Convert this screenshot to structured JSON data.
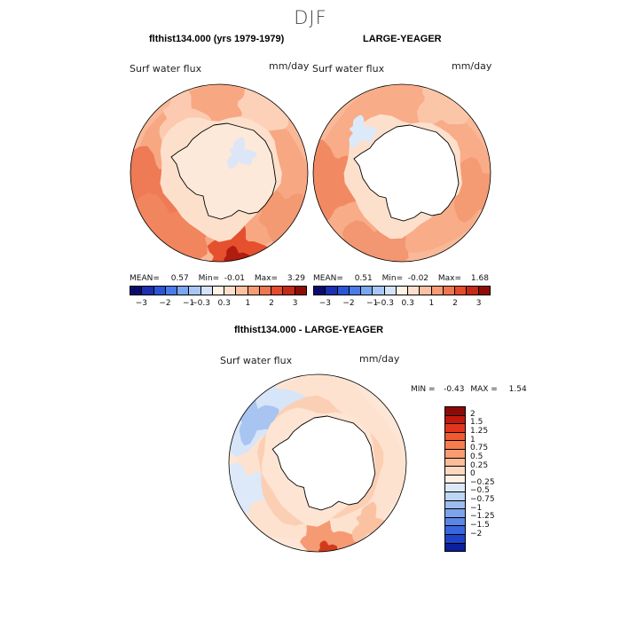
{
  "figure": {
    "season": "DJF"
  },
  "panels": [
    {
      "title": "flthist134.000 (yrs 1979-1979)",
      "variable": "Surf water flux",
      "units": "mm/day",
      "stats": {
        "mean_label": "MEAN=",
        "mean": "0.57",
        "min_label": "Min=",
        "min": "-0.01",
        "max_label": "Max=",
        "max": "3.29"
      }
    },
    {
      "title": "LARGE-YEAGER",
      "variable": "Surf water flux",
      "units": "mm/day",
      "stats": {
        "mean_label": "MEAN=",
        "mean": "0.51",
        "min_label": "Min=",
        "min": "-0.02",
        "max_label": "Max=",
        "max": "1.68"
      }
    },
    {
      "title": "flthist134.000 - LARGE-YEAGER",
      "variable": "Surf water flux",
      "units": "mm/day",
      "stats": {
        "min_label": "MIN =",
        "min": "-0.43",
        "max_label": "MAX =",
        "max": "1.54"
      }
    }
  ],
  "chart_data": [
    {
      "type": "heatmap",
      "title": "flthist134.000 (yrs 1979-1979)",
      "projection": "south polar stereographic",
      "variable": "Surf water flux",
      "units": "mm/day",
      "stats": {
        "mean": 0.57,
        "min": -0.01,
        "max": 3.29
      },
      "colorbar_ticks": [
        "−3",
        "−2",
        "−1",
        "−0.3",
        "0.3",
        "1",
        "2",
        "3"
      ],
      "colorbar_colors": [
        "#0b0b6e",
        "#1b2fb0",
        "#2a55d8",
        "#4a7be9",
        "#7ba6f0",
        "#a9c7f4",
        "#d4e3f8",
        "#fff3e6",
        "#fde0cc",
        "#fbc1a2",
        "#f59c76",
        "#ee7650",
        "#e34c2d",
        "#c52a17",
        "#8f0b07"
      ]
    },
    {
      "type": "heatmap",
      "title": "LARGE-YEAGER",
      "projection": "south polar stereographic",
      "variable": "Surf water flux",
      "units": "mm/day",
      "stats": {
        "mean": 0.51,
        "min": -0.02,
        "max": 1.68
      },
      "colorbar_ticks": [
        "−3",
        "−2",
        "−1",
        "−0.3",
        "0.3",
        "1",
        "2",
        "3"
      ]
    },
    {
      "type": "heatmap",
      "title": "flthist134.000 - LARGE-YEAGER",
      "projection": "south polar stereographic",
      "variable": "Surf water flux",
      "units": "mm/day",
      "stats": {
        "min": -0.43,
        "max": 1.54
      },
      "colorbar_ticks": [
        "2",
        "1.5",
        "1.25",
        "1",
        "0.75",
        "0.5",
        "0.25",
        "0",
        "−0.25",
        "−0.5",
        "−0.75",
        "−1",
        "−1.25",
        "−1.5",
        "−2"
      ],
      "colorbar_colors": [
        "#8e0a07",
        "#c4180d",
        "#e2361c",
        "#f15a2e",
        "#f67d4e",
        "#f99c70",
        "#fbbc98",
        "#fdd8c0",
        "#fff0e6",
        "#dce9f8",
        "#bed5f3",
        "#9dbdee",
        "#7ea3ea",
        "#5c86e5",
        "#3a66dd",
        "#1e43c9",
        "#0b1f9c"
      ]
    }
  ]
}
